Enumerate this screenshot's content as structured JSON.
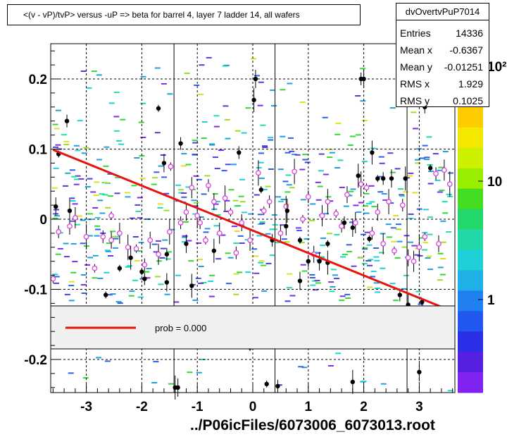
{
  "title": "<(v - vP)/tvP> versus  -uP => beta for barrel 4, layer 7 ladder 14, all wafers",
  "footer_label": "../P06icFiles/6073006_6073013.root",
  "stats": {
    "name": "dvOvertvPuP7014",
    "rows": [
      {
        "key": "Entries",
        "value": "14336"
      },
      {
        "key": "Mean x",
        "value": "-0.6367"
      },
      {
        "key": "Mean y",
        "value": "-0.01251"
      },
      {
        "key": "RMS x",
        "value": "1.929"
      },
      {
        "key": "RMS y",
        "value": "0.1025"
      }
    ]
  },
  "legend": {
    "entry": "prob = 0.000",
    "line_color": "#e8120f"
  },
  "colors": {
    "profile_marker": "#e040e0",
    "fit_line": "#e8120f",
    "points": "#000000"
  },
  "chart_data": {
    "type": "scatter",
    "title": "<(v - vP)/tvP> versus  -uP => beta for barrel 4, layer 7 ladder 14, all wafers",
    "xlim": [
      -3.65,
      3.65
    ],
    "ylim": [
      -0.245,
      0.25
    ],
    "xticks": [
      -3,
      -2,
      -1,
      0,
      1,
      2,
      3
    ],
    "yticks": [
      -0.2,
      -0.1,
      0,
      0.1,
      0.2
    ],
    "grid": true,
    "z_axis": {
      "type": "log",
      "tick_labels": [
        "1",
        "10",
        "10²"
      ]
    },
    "fit_line": {
      "x": [
        -3.6,
        3.4
      ],
      "y": [
        0.099,
        -0.125
      ]
    },
    "black_points": [
      {
        "x": -3.5,
        "y": 0.093
      },
      {
        "x": -3.35,
        "y": 0.14
      },
      {
        "x": -3.55,
        "y": 0.018
      },
      {
        "x": -3.3,
        "y": 0.012
      },
      {
        "x": -1.7,
        "y": 0.158
      },
      {
        "x": -1.3,
        "y": 0.108
      },
      {
        "x": -1.6,
        "y": 0.08
      },
      {
        "x": -2.2,
        "y": -0.055
      },
      {
        "x": -2.0,
        "y": -0.075
      },
      {
        "x": -1.55,
        "y": -0.05
      },
      {
        "x": -1.2,
        "y": -0.035
      },
      {
        "x": -0.7,
        "y": -0.045
      },
      {
        "x": -2.4,
        "y": -0.07
      },
      {
        "x": -1.95,
        "y": -0.085
      },
      {
        "x": -1.55,
        "y": -0.09
      },
      {
        "x": -1.1,
        "y": -0.095
      },
      {
        "x": -2.65,
        "y": -0.108
      },
      {
        "x": -0.25,
        "y": 0.095
      },
      {
        "x": 0.05,
        "y": 0.2
      },
      {
        "x": 0.02,
        "y": 0.17
      },
      {
        "x": 0.15,
        "y": 0.042
      },
      {
        "x": 0.35,
        "y": -0.03
      },
      {
        "x": 0.6,
        "y": -0.01
      },
      {
        "x": 0.62,
        "y": 0.012
      },
      {
        "x": 0.85,
        "y": -0.03
      },
      {
        "x": 1.0,
        "y": -0.06
      },
      {
        "x": 1.2,
        "y": -0.06
      },
      {
        "x": 1.35,
        "y": -0.062
      },
      {
        "x": 1.35,
        "y": -0.035
      },
      {
        "x": 1.65,
        "y": -0.005
      },
      {
        "x": 1.8,
        "y": -0.012
      },
      {
        "x": 1.9,
        "y": 0.062
      },
      {
        "x": 2.1,
        "y": -0.028
      },
      {
        "x": 1.95,
        "y": 0.2
      },
      {
        "x": 2.0,
        "y": 0.2
      },
      {
        "x": 2.15,
        "y": 0.095
      },
      {
        "x": 2.25,
        "y": 0.058
      },
      {
        "x": 2.35,
        "y": 0.058
      },
      {
        "x": 2.5,
        "y": 0.058
      },
      {
        "x": 2.75,
        "y": 0.058
      },
      {
        "x": 3.2,
        "y": 0.073
      },
      {
        "x": 3.1,
        "y": 0.16
      },
      {
        "x": 0.85,
        "y": -0.088
      },
      {
        "x": 2.8,
        "y": -0.122
      },
      {
        "x": 3.05,
        "y": -0.118
      },
      {
        "x": 2.65,
        "y": -0.108
      },
      {
        "x": 3.0,
        "y": -0.218
      },
      {
        "x": 1.8,
        "y": -0.232
      },
      {
        "x": 0.25,
        "y": -0.235
      },
      {
        "x": 0.45,
        "y": -0.238
      },
      {
        "x": -1.35,
        "y": -0.24
      },
      {
        "x": -1.4,
        "y": -0.24
      },
      {
        "x": -0.05,
        "y": -0.183
      }
    ],
    "profile_points": [
      {
        "x": -3.6,
        "y": -0.085
      },
      {
        "x": -3.5,
        "y": -0.018
      },
      {
        "x": -3.3,
        "y": -0.01
      },
      {
        "x": -3.2,
        "y": 0.002
      },
      {
        "x": -3.0,
        "y": -0.025
      },
      {
        "x": -2.85,
        "y": -0.07
      },
      {
        "x": -2.7,
        "y": -0.025
      },
      {
        "x": -2.55,
        "y": -0.03
      },
      {
        "x": -2.4,
        "y": -0.02
      },
      {
        "x": -2.25,
        "y": -0.04
      },
      {
        "x": -2.1,
        "y": -0.042
      },
      {
        "x": -1.95,
        "y": -0.065
      },
      {
        "x": -1.85,
        "y": -0.03
      },
      {
        "x": -1.7,
        "y": -0.05
      },
      {
        "x": -1.5,
        "y": -0.018
      },
      {
        "x": -1.48,
        "y": 0.075
      },
      {
        "x": -1.3,
        "y": -0.005
      },
      {
        "x": -1.2,
        "y": 0.01
      },
      {
        "x": -1.1,
        "y": 0.045
      },
      {
        "x": -1.0,
        "y": 0.005
      },
      {
        "x": -0.85,
        "y": -0.03
      },
      {
        "x": -0.8,
        "y": 0.048
      },
      {
        "x": -0.7,
        "y": 0.025
      },
      {
        "x": -0.6,
        "y": -0.02
      },
      {
        "x": -0.5,
        "y": 0.03
      },
      {
        "x": -0.4,
        "y": 0.01
      },
      {
        "x": -0.3,
        "y": -0.048
      },
      {
        "x": -0.2,
        "y": -0.005
      },
      {
        "x": -0.05,
        "y": -0.03
      },
      {
        "x": 0.1,
        "y": 0.066
      },
      {
        "x": 0.2,
        "y": 0.012
      },
      {
        "x": 0.3,
        "y": 0.025
      },
      {
        "x": 0.5,
        "y": -0.02
      },
      {
        "x": 0.6,
        "y": 0.018
      },
      {
        "x": 0.75,
        "y": 0.068
      },
      {
        "x": 0.9,
        "y": 0.0
      },
      {
        "x": 1.0,
        "y": 0.032
      },
      {
        "x": 1.1,
        "y": -0.05
      },
      {
        "x": 1.25,
        "y": 0.005
      },
      {
        "x": 1.35,
        "y": 0.025
      },
      {
        "x": 1.5,
        "y": 0.008
      },
      {
        "x": 1.6,
        "y": -0.01
      },
      {
        "x": 1.7,
        "y": 0.035
      },
      {
        "x": 1.85,
        "y": -0.005
      },
      {
        "x": 1.95,
        "y": 0.05
      },
      {
        "x": 2.05,
        "y": 0.045
      },
      {
        "x": 2.15,
        "y": -0.02
      },
      {
        "x": 2.25,
        "y": 0.01
      },
      {
        "x": 2.35,
        "y": -0.035
      },
      {
        "x": 2.45,
        "y": 0.025
      },
      {
        "x": 2.55,
        "y": -0.045
      },
      {
        "x": 2.7,
        "y": 0.02
      },
      {
        "x": 2.8,
        "y": -0.055
      },
      {
        "x": 2.9,
        "y": -0.06
      },
      {
        "x": 3.0,
        "y": -0.04
      },
      {
        "x": 3.1,
        "y": -0.025
      },
      {
        "x": 3.3,
        "y": 0.065
      },
      {
        "x": 3.35,
        "y": -0.035
      },
      {
        "x": 3.45,
        "y": 0.07
      },
      {
        "x": 3.55,
        "y": 0.05
      },
      {
        "x": -2.55,
        "y": 0.005
      },
      {
        "x": -0.95,
        "y": -0.005
      }
    ]
  }
}
